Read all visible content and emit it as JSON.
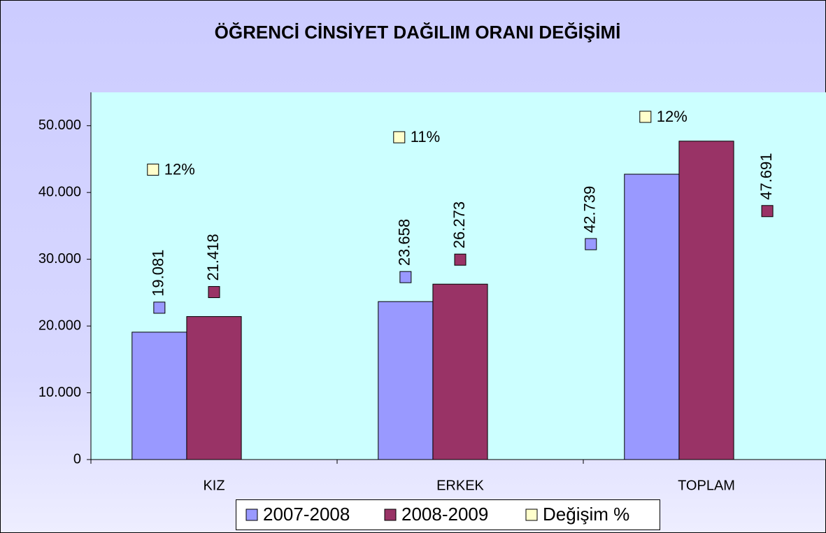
{
  "chart_data": {
    "type": "bar",
    "title": "ÖĞRENCİ CİNSİYET DAĞILIM ORANI DEĞİŞİMİ",
    "categories": [
      "KIZ",
      "ERKEK",
      "TOPLAM"
    ],
    "series": [
      {
        "name": "2007-2008",
        "color": "#9999ff",
        "values": [
          19081,
          23658,
          42739
        ],
        "value_labels": [
          "19.081",
          "23.658",
          "42.739"
        ]
      },
      {
        "name": "2008-2009",
        "color": "#993366",
        "values": [
          21418,
          26273,
          47691
        ],
        "value_labels": [
          "21.418",
          "26.273",
          "47.691"
        ]
      },
      {
        "name": "Değişim %",
        "color": "#ffffcc",
        "values": [
          12,
          11,
          12
        ],
        "value_labels": [
          "12%",
          "11%",
          "12%"
        ]
      }
    ],
    "ylim": [
      0,
      55000
    ],
    "yticks": [
      0,
      {
        "value": 10000,
        "label": "10.000"
      },
      {
        "value": 20000,
        "label": "20.000"
      },
      {
        "value": 30000,
        "label": "30.000"
      },
      {
        "value": 40000,
        "label": "40.000"
      },
      {
        "value": 50000,
        "label": "50.000"
      }
    ],
    "legend": "bottom"
  }
}
